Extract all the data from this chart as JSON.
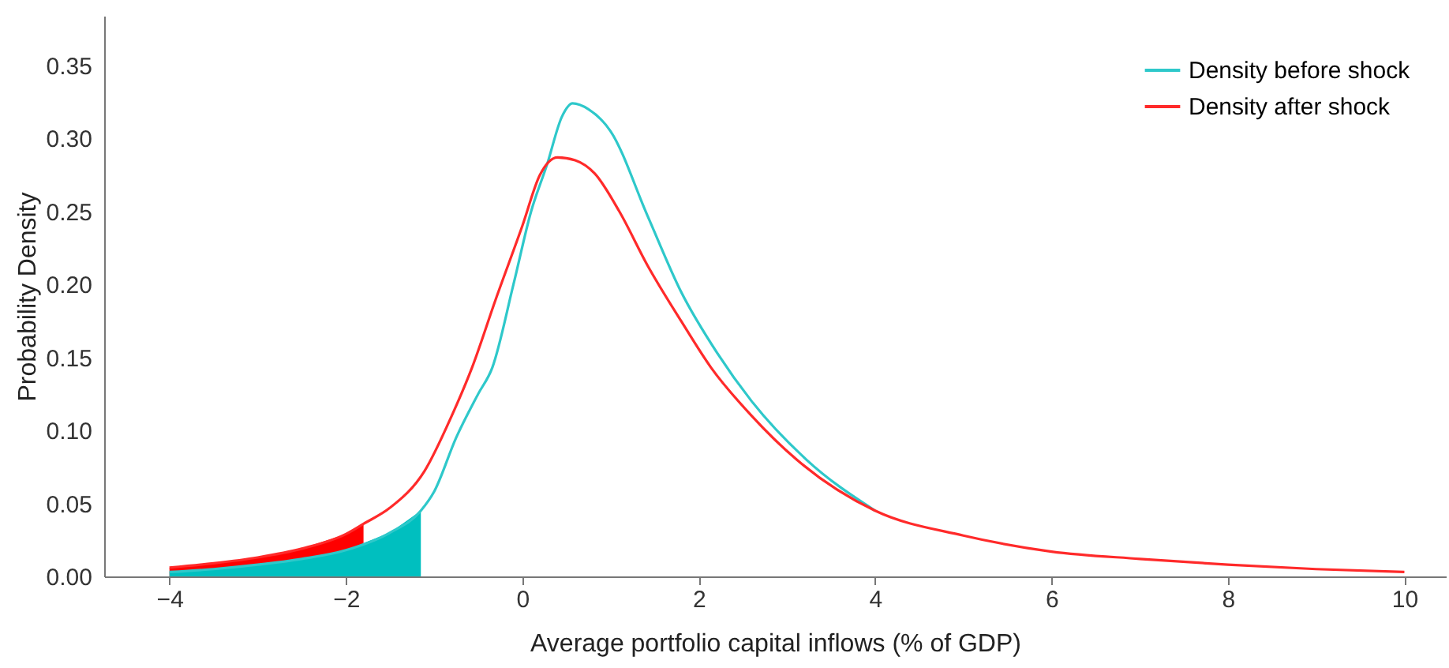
{
  "chart_data": {
    "type": "line",
    "xlabel": "Average portfolio capital inflows (% of GDP)",
    "ylabel": "Probability Density",
    "xlim": [
      -4.74,
      10.47
    ],
    "ylim": [
      0,
      0.384
    ],
    "xticks": [
      {
        "value": -4,
        "label": "−4"
      },
      {
        "value": -2,
        "label": "−2"
      },
      {
        "value": 0,
        "label": "0"
      },
      {
        "value": 2,
        "label": "2"
      },
      {
        "value": 4,
        "label": "4"
      },
      {
        "value": 6,
        "label": "6"
      },
      {
        "value": 8,
        "label": "8"
      },
      {
        "value": 10,
        "label": "10"
      }
    ],
    "yticks": [
      {
        "value": 0,
        "label": "0.00"
      },
      {
        "value": 0.05,
        "label": "0.05"
      },
      {
        "value": 0.1,
        "label": "0.10"
      },
      {
        "value": 0.15,
        "label": "0.15"
      },
      {
        "value": 0.2,
        "label": "0.20"
      },
      {
        "value": 0.25,
        "label": "0.25"
      },
      {
        "value": 0.3,
        "label": "0.30"
      },
      {
        "value": 0.35,
        "label": "0.35"
      }
    ],
    "grid": false,
    "legend": "top right",
    "marker": "none",
    "line_style": "solid",
    "series": [
      {
        "type": "area",
        "color": "#ff0000",
        "x": [
          -4,
          -3.5,
          -3,
          -2.5,
          -2,
          -1.8
        ],
        "values": [
          0.006,
          0.009,
          0.013,
          0.019,
          0.029,
          0.036
        ]
      },
      {
        "type": "area",
        "color": "#00bfbf",
        "x": [
          -4,
          -3.5,
          -3,
          -2.5,
          -2,
          -1.5,
          -1.15
        ],
        "values": [
          0.003,
          0.005,
          0.008,
          0.012,
          0.018,
          0.03,
          0.045
        ]
      },
      {
        "name": "Density before shock",
        "color": "#2ec8ca",
        "x": [
          -4,
          -3.5,
          -3,
          -2.5,
          -2,
          -1.5,
          -1.15,
          -1,
          -0.75,
          -0.5,
          -0.34,
          -0.1,
          0.1,
          0.28,
          0.45,
          0.57,
          0.75,
          1.0,
          1.42,
          1.8,
          2.21,
          2.6,
          3.22,
          4
        ],
        "values": [
          0.003,
          0.005,
          0.008,
          0.012,
          0.018,
          0.03,
          0.045,
          0.058,
          0.095,
          0.125,
          0.143,
          0.2,
          0.25,
          0.282,
          0.315,
          0.324,
          0.32,
          0.305,
          0.247,
          0.195,
          0.153,
          0.12,
          0.08,
          0.045
        ]
      },
      {
        "name": "Density after shock",
        "color": "#ff2a2a",
        "x": [
          -4,
          -3.5,
          -3,
          -2.5,
          -2,
          -1.8,
          -1.5,
          -1.11,
          -0.8,
          -0.57,
          -0.3,
          0,
          0.2,
          0.4,
          0.6,
          0.82,
          1.1,
          1.42,
          1.8,
          2.14,
          2.6,
          3.11,
          4,
          5,
          6,
          7,
          8,
          9,
          10
        ],
        "values": [
          0.006,
          0.009,
          0.013,
          0.019,
          0.029,
          0.036,
          0.047,
          0.072,
          0.11,
          0.143,
          0.19,
          0.24,
          0.275,
          0.287,
          0.285,
          0.276,
          0.25,
          0.213,
          0.175,
          0.143,
          0.11,
          0.08,
          0.045,
          0.028,
          0.017,
          0.012,
          0.008,
          0.005,
          0.003
        ]
      }
    ]
  }
}
